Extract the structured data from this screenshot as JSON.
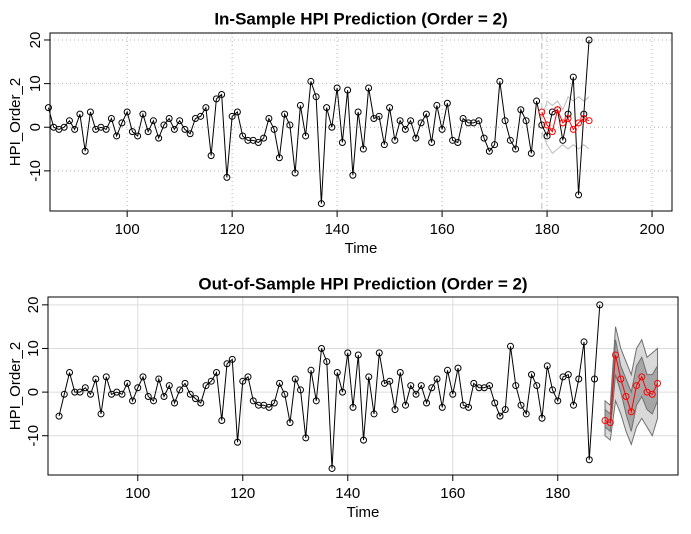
{
  "chart_data": [
    {
      "type": "line",
      "title": "In-Sample HPI Prediction (Order = 2)",
      "xlabel": "Time",
      "ylabel": "HPI_Order_2",
      "xlim": [
        85.3,
        203.8
      ],
      "ylim": [
        -19.2,
        21.6
      ],
      "xticks": [
        100,
        120,
        140,
        160,
        180,
        200
      ],
      "yticks": [
        -10,
        0,
        10,
        20
      ],
      "grid": "dotted",
      "vline": 179,
      "series": [
        {
          "color": "#000000",
          "x": [
            85,
            86,
            87,
            88,
            89,
            90,
            91,
            92,
            93,
            94,
            95,
            96,
            97,
            98,
            99,
            100,
            101,
            102,
            103,
            104,
            105,
            106,
            107,
            108,
            109,
            110,
            111,
            112,
            113,
            114,
            115,
            116,
            117,
            118,
            119,
            120,
            121,
            122,
            123,
            124,
            125,
            126,
            127,
            128,
            129,
            130,
            131,
            132,
            133,
            134,
            135,
            136,
            137,
            138,
            139,
            140,
            141,
            142,
            143,
            144,
            145,
            146,
            147,
            148,
            149,
            150,
            151,
            152,
            153,
            154,
            155,
            156,
            157,
            158,
            159,
            160,
            161,
            162,
            163,
            164,
            165,
            166,
            167,
            168,
            169,
            170,
            171,
            172,
            173,
            174,
            175,
            176,
            177,
            178,
            179,
            180,
            181,
            182,
            183,
            184,
            185,
            186,
            187,
            188
          ],
          "values": [
            4.5,
            0,
            -0.5,
            0,
            1.5,
            -0.5,
            3,
            -5.5,
            3.5,
            -0.5,
            0,
            -0.5,
            2,
            -2,
            1,
            3.5,
            -1,
            -2,
            3,
            -1,
            1.5,
            -2.5,
            0.5,
            2,
            -0.5,
            1.5,
            -0.5,
            -1.5,
            2,
            2.5,
            4.5,
            -6.5,
            6.5,
            7.5,
            -11.5,
            2.5,
            3.5,
            -2,
            -3,
            -3,
            -3.5,
            -2.5,
            2,
            -0.5,
            -7,
            3,
            0.5,
            -10.5,
            5,
            -2,
            10.5,
            7,
            -17.5,
            4.5,
            0,
            9,
            -3.5,
            8.5,
            -11,
            3.5,
            -5,
            9,
            2,
            2.5,
            -4,
            4.5,
            -3,
            1.5,
            -0.5,
            1.5,
            -2.5,
            1,
            3,
            -3.5,
            5,
            -0.5,
            5.5,
            -3,
            -3.5,
            2,
            1,
            1,
            1.5,
            -2.5,
            -5.5,
            -4,
            10.5,
            1.5,
            -3,
            -5,
            4,
            1.5,
            -6,
            6,
            0.5,
            -2,
            3.5,
            4,
            -3,
            3,
            11.5,
            -15.5,
            3,
            20
          ]
        },
        {
          "color": "#ff0000",
          "x": [
            179,
            180,
            181,
            182,
            183,
            184,
            185,
            186,
            187,
            188
          ],
          "values": [
            3.5,
            0.5,
            -1,
            4,
            1,
            2,
            -0.5,
            1,
            2,
            1.5
          ]
        }
      ],
      "bands": [
        {
          "color": "#bebebe",
          "x": [
            179,
            180,
            181,
            182,
            183,
            184,
            185,
            186,
            187,
            188
          ],
          "upper": [
            2,
            6,
            5,
            6,
            4,
            7,
            6,
            7,
            6,
            7
          ],
          "lower": [
            -1,
            -4,
            -6,
            -5,
            -4,
            -5,
            -4,
            -5,
            -4,
            -5
          ]
        }
      ]
    },
    {
      "type": "line",
      "title": "Out-of-Sample HPI Prediction (Order = 2)",
      "xlabel": "Time",
      "ylabel": "HPI_Order_2",
      "xlim": [
        82.9,
        202.9
      ],
      "ylim": [
        -19,
        21.8
      ],
      "xticks": [
        100,
        120,
        140,
        160,
        180
      ],
      "yticks": [
        -10,
        0,
        10,
        20
      ],
      "grid": "solid",
      "series": [
        {
          "color": "#000000",
          "x": [
            85,
            86,
            87,
            88,
            89,
            90,
            91,
            92,
            93,
            94,
            95,
            96,
            97,
            98,
            99,
            100,
            101,
            102,
            103,
            104,
            105,
            106,
            107,
            108,
            109,
            110,
            111,
            112,
            113,
            114,
            115,
            116,
            117,
            118,
            119,
            120,
            121,
            122,
            123,
            124,
            125,
            126,
            127,
            128,
            129,
            130,
            131,
            132,
            133,
            134,
            135,
            136,
            137,
            138,
            139,
            140,
            141,
            142,
            143,
            144,
            145,
            146,
            147,
            148,
            149,
            150,
            151,
            152,
            153,
            154,
            155,
            156,
            157,
            158,
            159,
            160,
            161,
            162,
            163,
            164,
            165,
            166,
            167,
            168,
            169,
            170,
            171,
            172,
            173,
            174,
            175,
            176,
            177,
            178,
            179,
            180,
            181,
            182,
            183,
            184,
            185,
            186,
            187,
            188
          ],
          "values": [
            -5.5,
            -0.5,
            4.5,
            0,
            0,
            1,
            -0.5,
            3,
            -5,
            3.5,
            -0.5,
            0,
            -0.5,
            2,
            -2,
            1,
            3.5,
            -1,
            -2,
            3,
            -1,
            1.5,
            -2.5,
            0.5,
            2,
            -0.5,
            -1.5,
            -2.5,
            1.5,
            2.5,
            4.5,
            -6.5,
            6.5,
            7.5,
            -11.5,
            2.5,
            3.5,
            -2,
            -3,
            -3,
            -3.5,
            -2.5,
            2,
            -0.5,
            -7,
            3,
            0.5,
            -10.5,
            5,
            -2,
            10,
            7,
            -17.5,
            4.5,
            0,
            9,
            -3.5,
            8.5,
            -11,
            3.5,
            -5,
            9,
            2,
            2.5,
            -4,
            4.5,
            -3,
            1.5,
            -0.5,
            1.5,
            -2.5,
            1,
            3,
            -3.5,
            5,
            -0.5,
            5.5,
            -3,
            -3.5,
            2,
            1,
            1,
            1.5,
            -2.5,
            -5.5,
            -4,
            10.5,
            1.5,
            -3,
            -5,
            4,
            1.5,
            -6,
            6,
            0.5,
            -2,
            3.5,
            4,
            -3,
            3,
            11.5,
            -15.5,
            3,
            20
          ]
        },
        {
          "color": "#ff0000",
          "x": [
            189,
            190,
            191,
            192,
            193,
            194,
            195,
            196,
            197,
            198,
            199
          ],
          "values": [
            -6.5,
            -7,
            8.5,
            3,
            -1,
            -4.5,
            1.5,
            3.5,
            0,
            -0.5,
            2
          ]
        }
      ],
      "bands": [
        {
          "color": "#d9d9d9",
          "x": [
            189,
            190,
            191,
            192,
            193,
            194,
            195,
            196,
            197,
            198,
            199
          ],
          "upper": [
            -2,
            -3,
            15,
            10,
            7,
            4,
            10,
            12,
            8,
            9,
            10
          ],
          "lower": [
            -10,
            -11,
            -2,
            -5,
            -9,
            -12,
            -8,
            -6,
            -8,
            -10,
            -6
          ]
        },
        {
          "color": "#a6a6a6",
          "x": [
            189,
            190,
            191,
            192,
            193,
            194,
            195,
            196,
            197,
            198,
            199
          ],
          "upper": [
            -4,
            -5,
            12,
            6,
            3,
            0,
            6,
            8,
            4,
            4,
            6
          ],
          "lower": [
            -8,
            -9,
            4,
            0,
            -5,
            -9,
            -3,
            -1,
            -4,
            -5,
            -2
          ]
        }
      ]
    }
  ]
}
